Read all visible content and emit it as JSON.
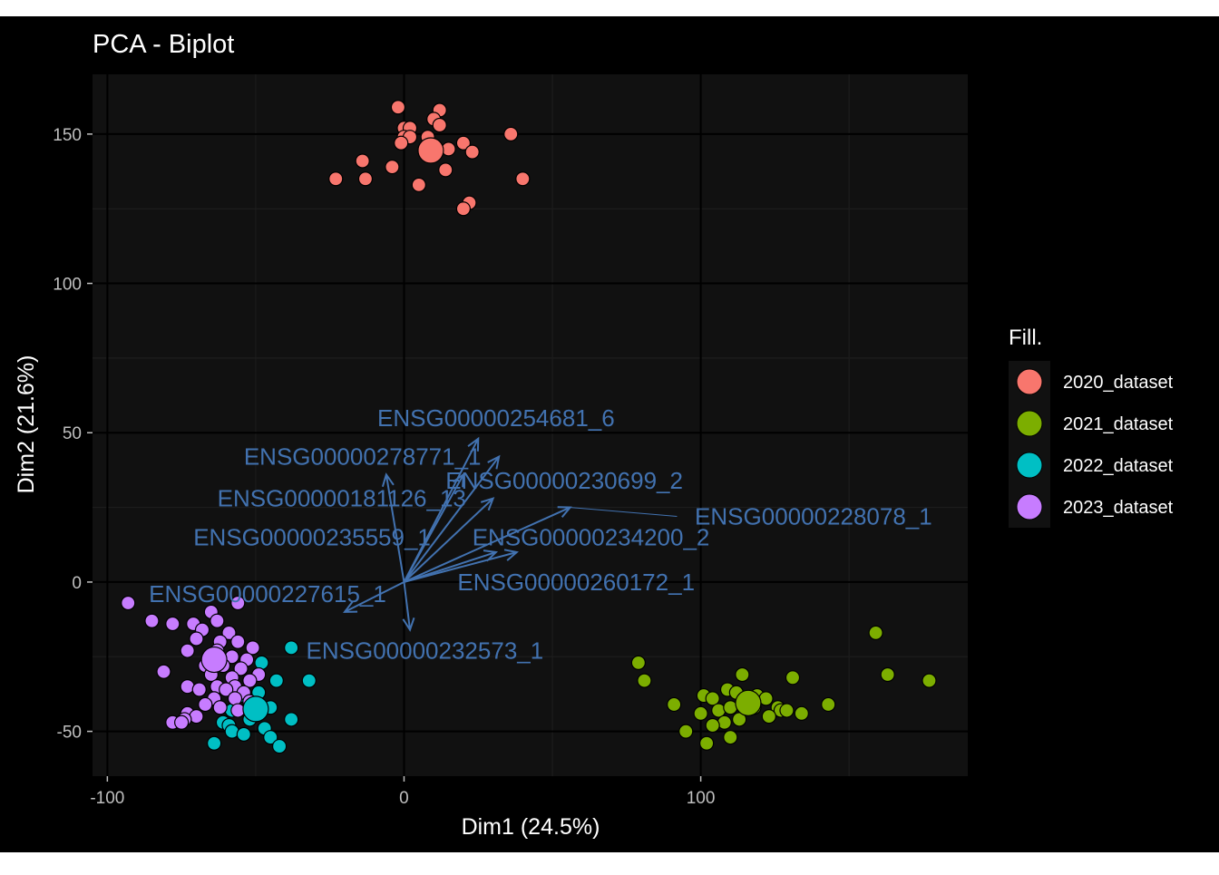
{
  "chart_data": {
    "type": "scatter",
    "title": "PCA - Biplot",
    "xlabel": "Dim1 (24.5%)",
    "ylabel": "Dim2 (21.6%)",
    "xlim": [
      -105,
      190
    ],
    "ylim": [
      -65,
      170
    ],
    "xticks": [
      -100,
      0,
      100
    ],
    "xtick_labels": [
      "-100",
      "0",
      "100"
    ],
    "yticks": [
      -50,
      0,
      50,
      100,
      150
    ],
    "ytick_labels": [
      "-50",
      "0",
      "50",
      "100",
      "150"
    ],
    "grid": true,
    "legend": {
      "title": "Fill.",
      "position": "right"
    },
    "colors": {
      "page_bg": "#000000",
      "panel_bg": "#111111",
      "grid_major": "#000000",
      "grid_minor": "#1d1d1d",
      "text": "#ffffff",
      "tick_text": "#bfbfbf",
      "arrow": "#4272b0"
    },
    "series": [
      {
        "name": "2020_dataset",
        "color": "#F8766D",
        "centroid": [
          9,
          144.5
        ],
        "points": [
          [
            -2,
            159
          ],
          [
            12,
            158
          ],
          [
            0,
            152
          ],
          [
            2,
            152
          ],
          [
            10,
            155
          ],
          [
            12,
            153
          ],
          [
            0,
            149
          ],
          [
            2,
            149
          ],
          [
            8,
            149
          ],
          [
            15,
            145
          ],
          [
            -1,
            147
          ],
          [
            20,
            147
          ],
          [
            23,
            144
          ],
          [
            36,
            150
          ],
          [
            -14,
            141
          ],
          [
            -4,
            139
          ],
          [
            14,
            138
          ],
          [
            -23,
            135
          ],
          [
            -13,
            135
          ],
          [
            5,
            133
          ],
          [
            40,
            135
          ],
          [
            22,
            127
          ],
          [
            20,
            125
          ]
        ]
      },
      {
        "name": "2021_dataset",
        "color": "#7CAE00",
        "centroid": [
          116,
          -40.5
        ],
        "points": [
          [
            159,
            -17
          ],
          [
            79,
            -27
          ],
          [
            81,
            -33
          ],
          [
            163,
            -31
          ],
          [
            177,
            -33
          ],
          [
            131,
            -32
          ],
          [
            114,
            -31
          ],
          [
            109,
            -36
          ],
          [
            101,
            -38
          ],
          [
            104,
            -39
          ],
          [
            112,
            -37
          ],
          [
            119,
            -38
          ],
          [
            122,
            -39
          ],
          [
            143,
            -41
          ],
          [
            91,
            -41
          ],
          [
            100,
            -44
          ],
          [
            106,
            -43
          ],
          [
            110,
            -42
          ],
          [
            118,
            -42
          ],
          [
            126,
            -42
          ],
          [
            127,
            -43
          ],
          [
            129,
            -43
          ],
          [
            134,
            -44
          ],
          [
            123,
            -45
          ],
          [
            113,
            -46
          ],
          [
            108,
            -47
          ],
          [
            104,
            -48
          ],
          [
            95,
            -50
          ],
          [
            110,
            -52
          ],
          [
            102,
            -54
          ]
        ]
      },
      {
        "name": "2022_dataset",
        "color": "#00BFC4",
        "centroid": [
          -50,
          -42.5
        ],
        "points": [
          [
            -38,
            -22
          ],
          [
            -48,
            -27
          ],
          [
            -32,
            -33
          ],
          [
            -43,
            -33
          ],
          [
            -49,
            -37
          ],
          [
            -55,
            -38
          ],
          [
            -52,
            -41
          ],
          [
            -45,
            -42
          ],
          [
            -58,
            -43
          ],
          [
            -52,
            -46
          ],
          [
            -61,
            -47
          ],
          [
            -38,
            -46
          ],
          [
            -59,
            -48
          ],
          [
            -47,
            -49
          ],
          [
            -58,
            -50
          ],
          [
            -54,
            -51
          ],
          [
            -45,
            -52
          ],
          [
            -64,
            -54
          ],
          [
            -42,
            -55
          ]
        ]
      },
      {
        "name": "2023_dataset",
        "color": "#C77CFF",
        "centroid": [
          -64,
          -26
        ],
        "points": [
          [
            -93,
            -7
          ],
          [
            -56,
            -7
          ],
          [
            -65,
            -10
          ],
          [
            -85,
            -13
          ],
          [
            -63,
            -13
          ],
          [
            -78,
            -14
          ],
          [
            -71,
            -14
          ],
          [
            -68,
            -16
          ],
          [
            -59,
            -17
          ],
          [
            -70,
            -19
          ],
          [
            -62,
            -20
          ],
          [
            -56,
            -20
          ],
          [
            -51,
            -22
          ],
          [
            -73,
            -23
          ],
          [
            -63,
            -23
          ],
          [
            -58,
            -25
          ],
          [
            -53,
            -26
          ],
          [
            -67,
            -28
          ],
          [
            -61,
            -28
          ],
          [
            -55,
            -29
          ],
          [
            -49,
            -31
          ],
          [
            -81,
            -30
          ],
          [
            -65,
            -31
          ],
          [
            -58,
            -32
          ],
          [
            -52,
            -33
          ],
          [
            -73,
            -35
          ],
          [
            -63,
            -35
          ],
          [
            -57,
            -35
          ],
          [
            -69,
            -36
          ],
          [
            -60,
            -36
          ],
          [
            -54,
            -37
          ],
          [
            -64,
            -39
          ],
          [
            -57,
            -39
          ],
          [
            -52,
            -40
          ],
          [
            -67,
            -41
          ],
          [
            -62,
            -42
          ],
          [
            -56,
            -43
          ],
          [
            -73,
            -44
          ],
          [
            -70,
            -45
          ],
          [
            -74,
            -46
          ],
          [
            -78,
            -47
          ],
          [
            -75,
            -47
          ]
        ]
      }
    ],
    "arrows": [
      {
        "label": "ENSG00000254681_6",
        "end": [
          25,
          48
        ],
        "label_pos": [
          31,
          55
        ]
      },
      {
        "label": "ENSG00000278771_1",
        "end": [
          -6,
          36
        ],
        "label_pos": [
          -14,
          42
        ]
      },
      {
        "label": "ENSG00000230699_2",
        "end": [
          32,
          42
        ],
        "label_pos": [
          54,
          34
        ]
      },
      {
        "label": "ENSG00000181126_13",
        "end": [
          20,
          36
        ],
        "label_pos": [
          -21,
          28
        ]
      },
      {
        "label": "ENSG00000228078_1",
        "end": [
          56,
          25
        ],
        "label_pos": [
          138,
          22
        ]
      },
      {
        "label": "ENSG00000235559_1",
        "end": [
          30,
          28
        ],
        "label_pos": [
          -31,
          15
        ]
      },
      {
        "label": "ENSG00000234200_2",
        "end": [
          38,
          10
        ],
        "label_pos": [
          63,
          15
        ]
      },
      {
        "label": "ENSG00000227615_1",
        "end": [
          -20,
          -10
        ],
        "label_pos": [
          -46,
          -4
        ]
      },
      {
        "label": "ENSG00000260172_1",
        "end": [
          31,
          10
        ],
        "label_pos": [
          58,
          0
        ]
      },
      {
        "label": "ENSG00000232573_1",
        "end": [
          2,
          -16
        ],
        "label_pos": [
          7,
          -23
        ]
      }
    ]
  }
}
